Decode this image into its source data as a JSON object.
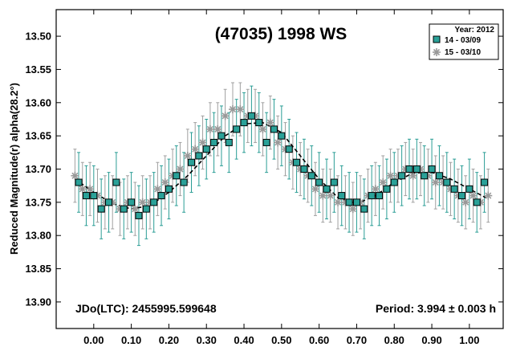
{
  "chart_data": {
    "type": "scatter",
    "title": "(47035) 1998 WS",
    "xlabel": "",
    "ylabel": "Reduced Magnitude(r) alpha(28.2°)",
    "xlim": [
      -0.1,
      1.09
    ],
    "ylim": [
      13.94,
      13.46
    ],
    "y_inverted": true,
    "x_ticks": [
      0.0,
      0.1,
      0.2,
      0.3,
      0.4,
      0.5,
      0.6,
      0.7,
      0.8,
      0.9,
      1.0
    ],
    "x_tick_labels": [
      "0.00",
      "0.10",
      "0.20",
      "0.30",
      "0.40",
      "0.50",
      "0.60",
      "0.70",
      "0.80",
      "0.90",
      "1.00"
    ],
    "y_ticks": [
      13.5,
      13.55,
      13.6,
      13.65,
      13.7,
      13.75,
      13.8,
      13.85,
      13.9
    ],
    "y_tick_labels": [
      "13.50",
      "13.55",
      "13.60",
      "13.65",
      "13.70",
      "13.75",
      "13.80",
      "13.85",
      "13.90"
    ],
    "legend": {
      "placement": "top-right",
      "title": "Year: 2012",
      "entries": [
        "14 - 03/09",
        "15 - 03/10"
      ]
    },
    "annotations": {
      "epoch": "JDo(LTC): 2455995.599648",
      "period": "Period: 3.994 ± 0.003 h"
    },
    "fit_curve": {
      "name": "",
      "x": [
        -0.05,
        0.0,
        0.05,
        0.1,
        0.15,
        0.2,
        0.25,
        0.3,
        0.35,
        0.4,
        0.45,
        0.5,
        0.55,
        0.6,
        0.65,
        0.7,
        0.75,
        0.8,
        0.85,
        0.9,
        0.95,
        1.0,
        1.05
      ],
      "y": [
        13.715,
        13.735,
        13.752,
        13.76,
        13.755,
        13.735,
        13.71,
        13.68,
        13.65,
        13.632,
        13.63,
        13.645,
        13.68,
        13.715,
        13.743,
        13.752,
        13.74,
        13.72,
        13.706,
        13.705,
        13.715,
        13.73,
        13.745
      ]
    },
    "series": [
      {
        "name": "14 - 03/09",
        "color": "#2aa198",
        "marker": "square",
        "x": [
          -0.04,
          -0.02,
          0.0,
          0.02,
          0.04,
          0.06,
          0.08,
          0.1,
          0.12,
          0.14,
          0.16,
          0.18,
          0.2,
          0.22,
          0.24,
          0.26,
          0.28,
          0.3,
          0.32,
          0.34,
          0.36,
          0.38,
          0.4,
          0.42,
          0.44,
          0.46,
          0.48,
          0.5,
          0.52,
          0.54,
          0.56,
          0.58,
          0.6,
          0.62,
          0.64,
          0.66,
          0.68,
          0.7,
          0.72,
          0.74,
          0.76,
          0.78,
          0.8,
          0.82,
          0.84,
          0.86,
          0.88,
          0.9,
          0.92,
          0.94,
          0.96,
          0.98,
          1.0,
          1.02,
          1.04
        ],
        "y": [
          13.72,
          13.74,
          13.74,
          13.76,
          13.75,
          13.72,
          13.76,
          13.75,
          13.77,
          13.76,
          13.75,
          13.74,
          13.73,
          13.71,
          13.72,
          13.69,
          13.68,
          13.67,
          13.66,
          13.65,
          13.66,
          13.64,
          13.63,
          13.62,
          13.63,
          13.66,
          13.64,
          13.65,
          13.67,
          13.69,
          13.7,
          13.71,
          13.72,
          13.73,
          13.72,
          13.74,
          13.75,
          13.75,
          13.76,
          13.74,
          13.74,
          13.73,
          13.72,
          13.71,
          13.7,
          13.7,
          13.71,
          13.7,
          13.71,
          13.72,
          13.73,
          13.74,
          13.73,
          13.75,
          13.72
        ],
        "err": 0.045
      },
      {
        "name": "15 - 03/10",
        "color": "#999999",
        "marker": "asterisk",
        "x": [
          -0.05,
          -0.03,
          -0.01,
          0.01,
          0.03,
          0.05,
          0.07,
          0.09,
          0.11,
          0.13,
          0.15,
          0.17,
          0.19,
          0.21,
          0.23,
          0.25,
          0.27,
          0.29,
          0.31,
          0.33,
          0.35,
          0.37,
          0.39,
          0.41,
          0.43,
          0.45,
          0.47,
          0.49,
          0.51,
          0.53,
          0.55,
          0.57,
          0.59,
          0.61,
          0.63,
          0.65,
          0.67,
          0.69,
          0.71,
          0.73,
          0.75,
          0.77,
          0.79,
          0.81,
          0.83,
          0.85,
          0.87,
          0.89,
          0.91,
          0.93,
          0.95,
          0.97,
          0.99,
          1.01,
          1.03,
          1.05
        ],
        "y": [
          13.71,
          13.73,
          13.73,
          13.74,
          13.75,
          13.75,
          13.76,
          13.75,
          13.76,
          13.75,
          13.75,
          13.73,
          13.72,
          13.71,
          13.7,
          13.68,
          13.67,
          13.66,
          13.64,
          13.64,
          13.62,
          13.61,
          13.61,
          13.62,
          13.62,
          13.64,
          13.63,
          13.66,
          13.67,
          13.69,
          13.7,
          13.71,
          13.73,
          13.74,
          13.74,
          13.75,
          13.75,
          13.76,
          13.75,
          13.74,
          13.73,
          13.72,
          13.71,
          13.71,
          13.7,
          13.71,
          13.7,
          13.71,
          13.72,
          13.72,
          13.73,
          13.74,
          13.75,
          13.74,
          13.75,
          13.74
        ],
        "err": 0.04
      }
    ]
  }
}
